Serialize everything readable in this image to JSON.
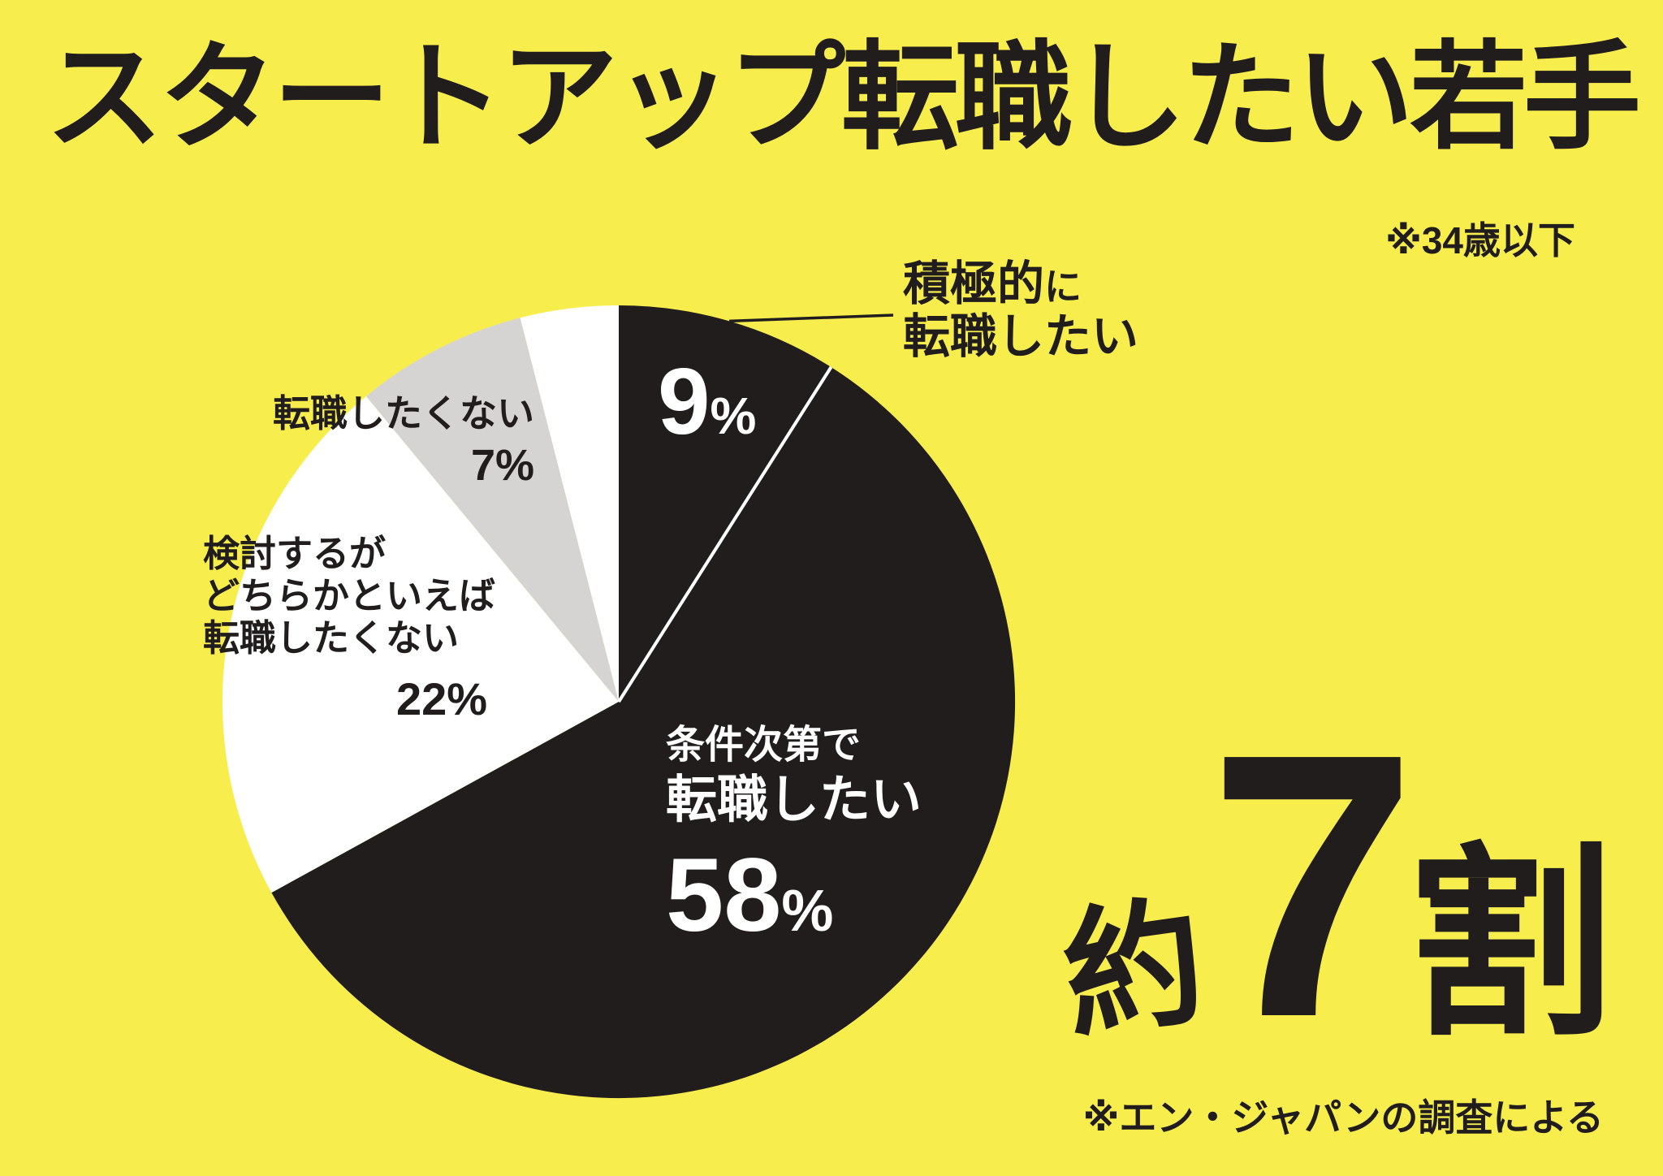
{
  "title": {
    "text": "スタートアップ転職したい若手",
    "note": "※34歳以下"
  },
  "source": {
    "note": "※エン・ジャパンの調査による"
  },
  "highlight": {
    "prefix": "約",
    "number": "7",
    "suffix": "割"
  },
  "colors": {
    "background": "#F7EE4E",
    "ink": "#211D1D",
    "pie_black": "#211D1D",
    "pie_white": "#FFFFFF",
    "pie_gray": "#D6D4D3",
    "value_text_on_black": "#FFFFFF"
  },
  "chart_data": {
    "type": "pie",
    "title": "スタートアップ転職したい若手",
    "subtitle_note": "※34歳以下",
    "source_note": "※エン・ジャパンの調査による",
    "unit": "%",
    "categories": [
      "積極的に転職したい",
      "条件次第で転職したい",
      "検討するがどちらかといえば転職したくない",
      "転職したくない",
      ""
    ],
    "values": [
      9,
      58,
      22,
      7,
      4
    ],
    "colors": [
      "#211D1D",
      "#211D1D",
      "#FFFFFF",
      "#D6D4D3",
      "#FFFFFF"
    ],
    "start_angle_deg": 0,
    "clockwise": true,
    "legend": "none",
    "annotations": [
      "約7割",
      "9%",
      "58%",
      "22%",
      "7%"
    ]
  },
  "labels": {
    "active": {
      "line1_main": "積極的",
      "line1_small": "に",
      "line2": "転職したい",
      "num": "9",
      "pct": "%"
    },
    "conditional": {
      "line1": "条件次第で",
      "line2": "転職したい",
      "num": "58",
      "pct": "%"
    },
    "consider": {
      "line1": "検討するが",
      "line2": "どちらかといえば",
      "line3": "転職したくない",
      "num": "22%"
    },
    "negative": {
      "line1": "転職したくない",
      "num": "7%"
    }
  }
}
